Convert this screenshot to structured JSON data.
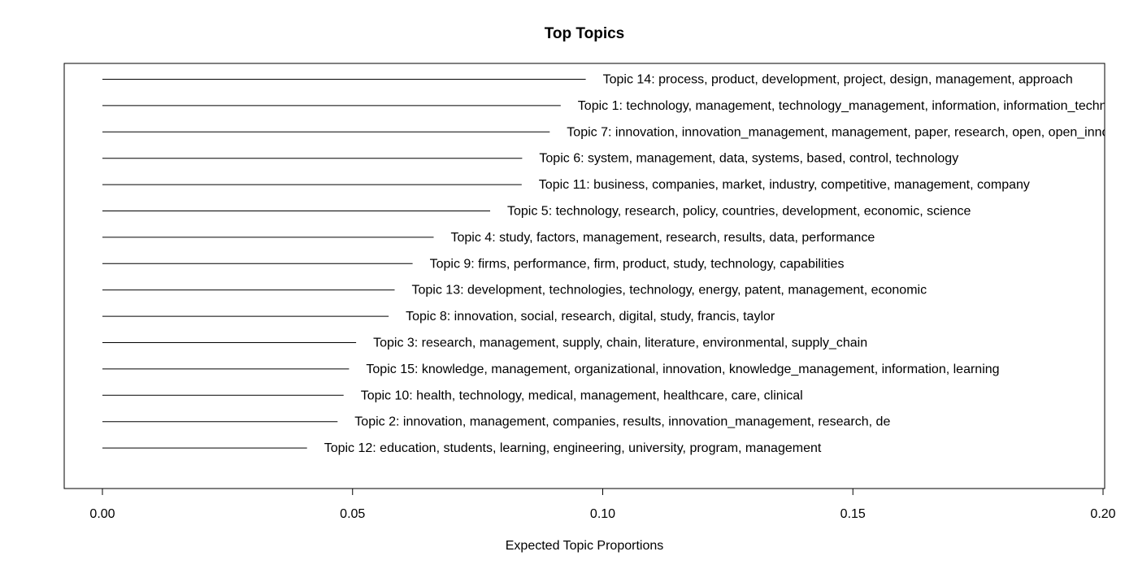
{
  "chart_data": {
    "type": "bar",
    "orientation": "horizontal",
    "title": "Top Topics",
    "xlabel": "Expected Topic Proportions",
    "ylabel": "",
    "xlim": [
      0,
      0.2
    ],
    "xticks": [
      0.0,
      0.05,
      0.1,
      0.15,
      0.2
    ],
    "xtick_labels": [
      "0.00",
      "0.05",
      "0.10",
      "0.15",
      "0.20"
    ],
    "grid": false,
    "legend": "none",
    "bar_color": "#000000",
    "categories": [
      "Topic 14: process, product, development, project, design, management, approach",
      "Topic 1: technology, management, technology_management, information, information_techn",
      "Topic 7: innovation, innovation_management, management, paper, research, open, open_inno",
      "Topic 6: system, management, data, systems, based, control, technology",
      "Topic 11: business, companies, market, industry, competitive, management, company",
      "Topic 5: technology, research, policy, countries, development, economic, science",
      "Topic 4: study, factors, management, research, results, data, performance",
      "Topic 9: firms, performance, firm, product, study, technology, capabilities",
      "Topic 13: development, technologies, technology, energy, patent, management, economic",
      "Topic 8: innovation, social, research, digital, study, francis, taylor",
      "Topic 3: research, management, supply, chain, literature, environmental, supply_chain",
      "Topic 15: knowledge, management, organizational, innovation, knowledge_management, information, learning",
      "Topic 10: health, technology, medical, management, healthcare, care, clinical",
      "Topic 2: innovation, management, companies, results, innovation_management, research, de",
      "Topic 12: education, students, learning, engineering, university, program, management"
    ],
    "values": [
      0.0966,
      0.0916,
      0.0894,
      0.0839,
      0.0838,
      0.0775,
      0.0662,
      0.062,
      0.0584,
      0.0572,
      0.0507,
      0.0493,
      0.0482,
      0.047,
      0.0409
    ]
  }
}
